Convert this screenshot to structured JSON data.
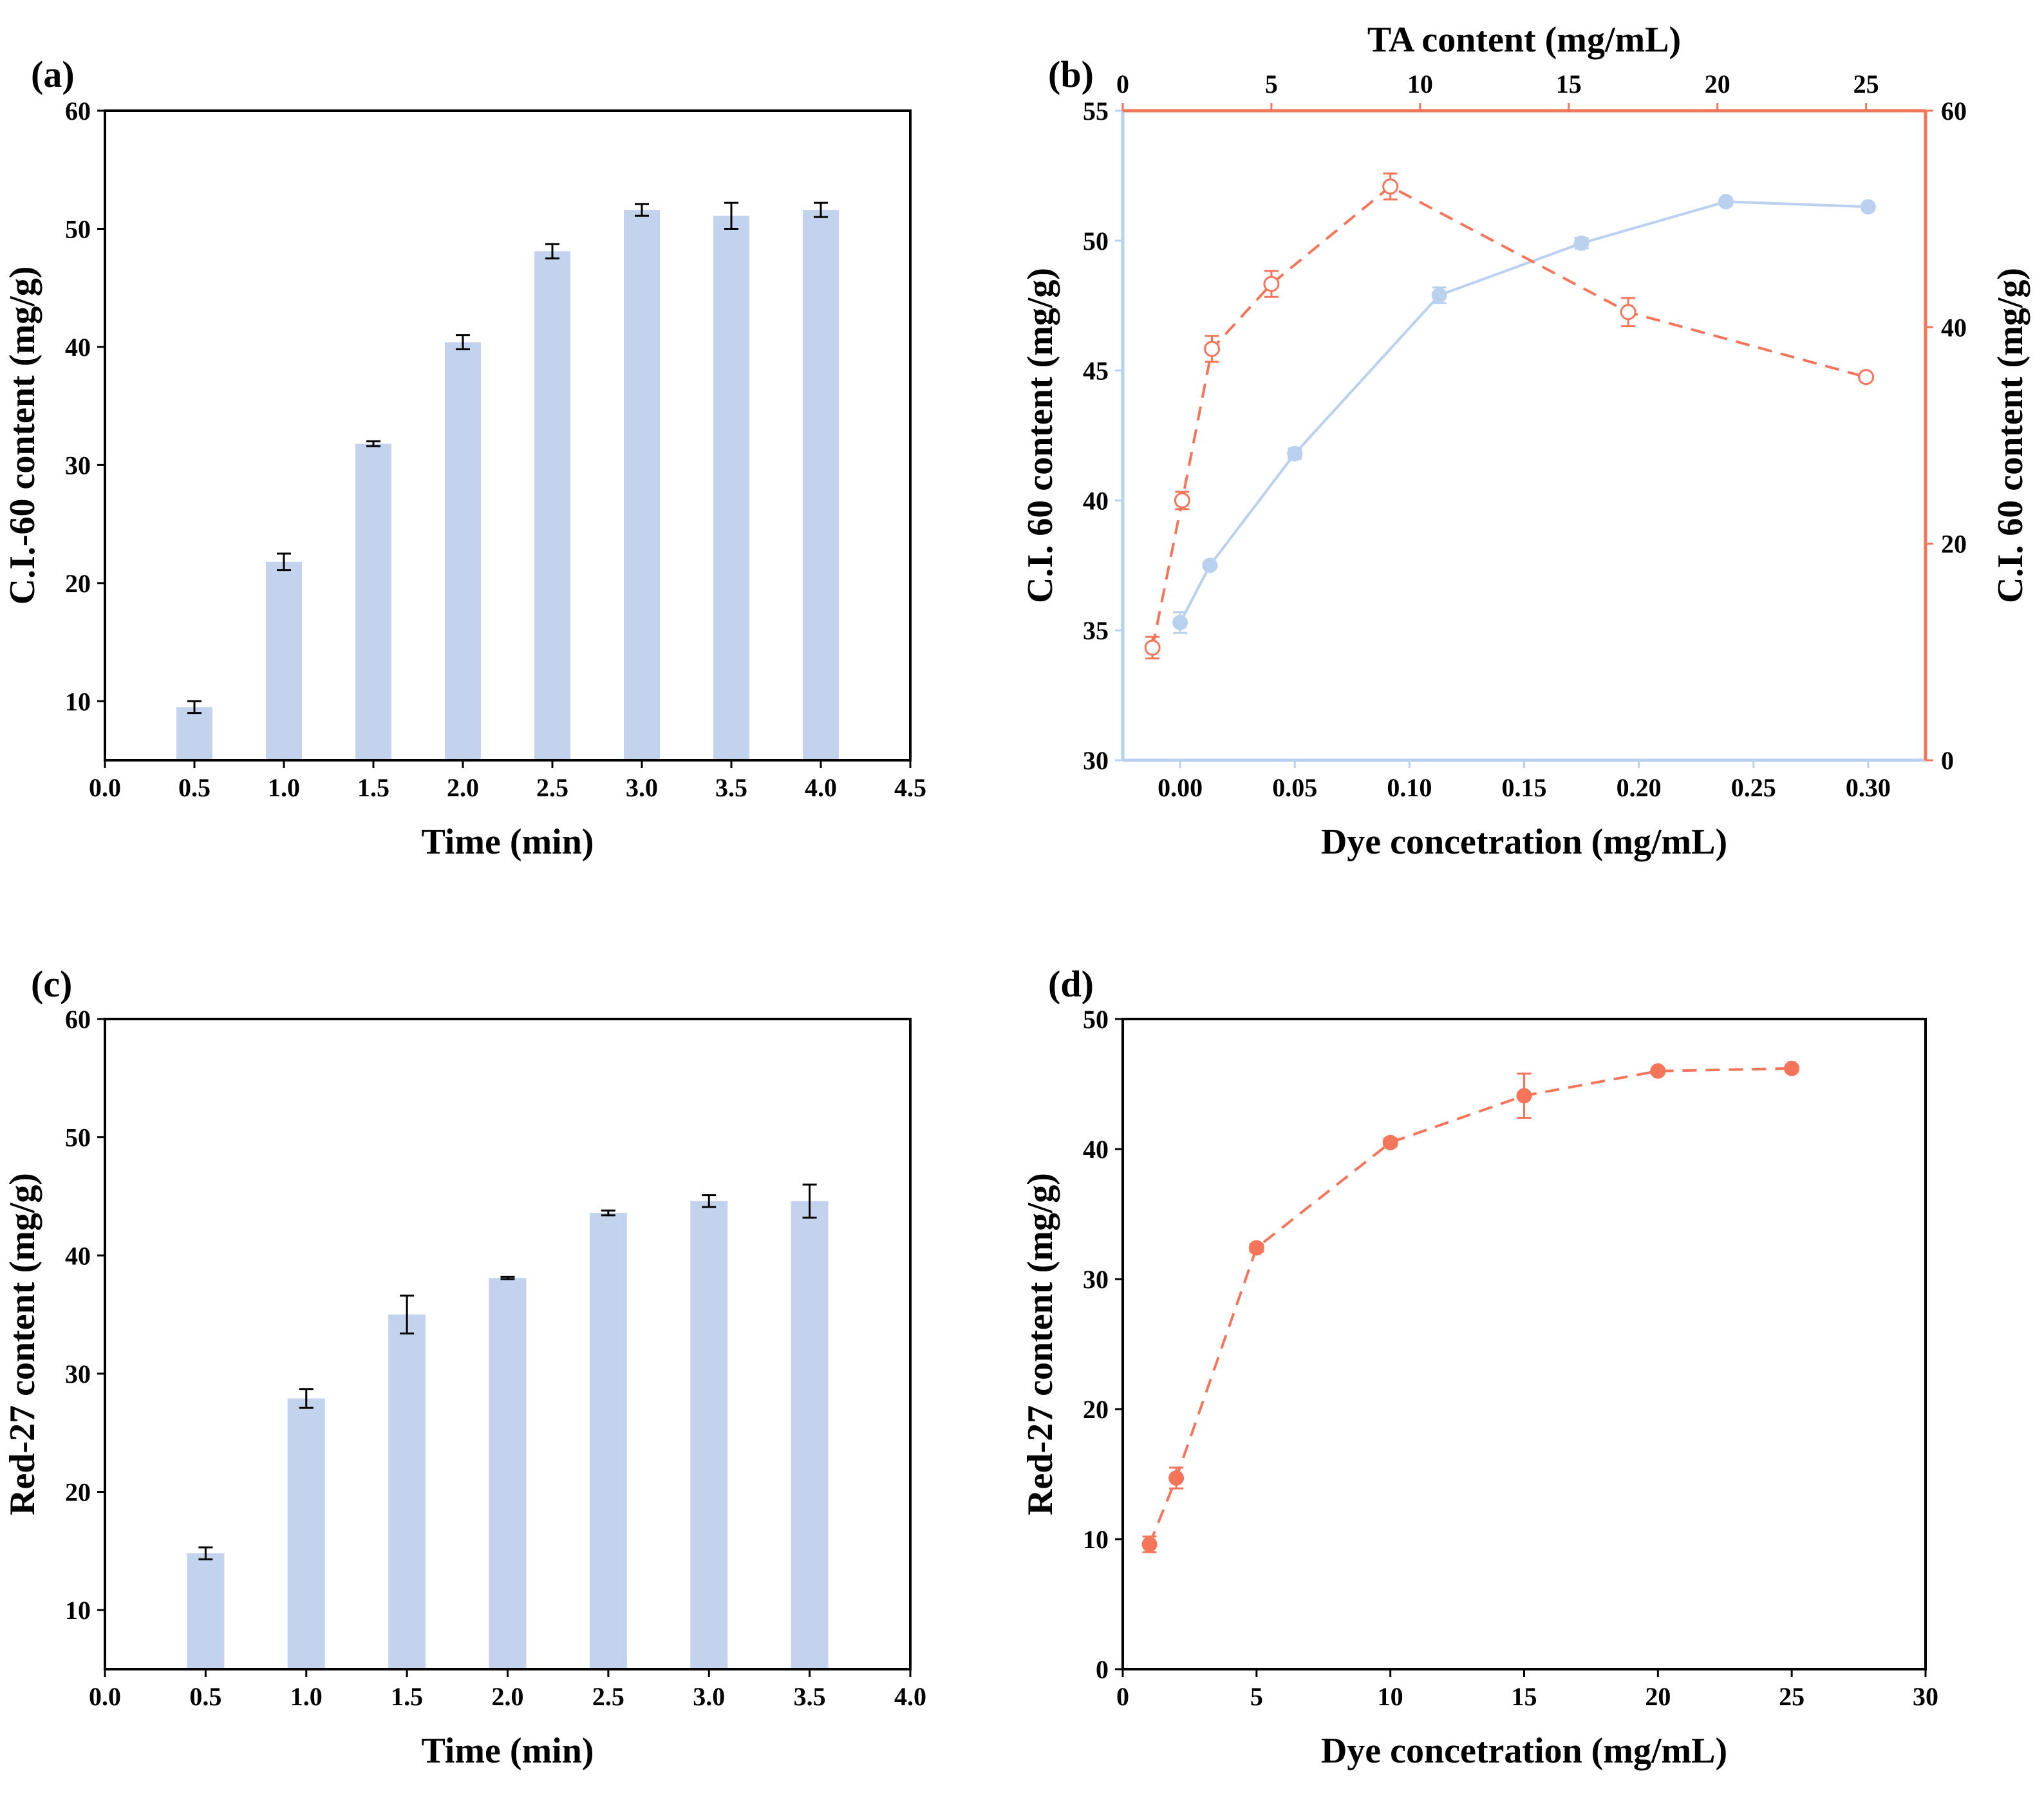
{
  "chart_data": [
    {
      "id": "a",
      "type": "bar",
      "panel_label": "(a)",
      "xlabel": "Time (min)",
      "ylabel": "C.I.-60 content (mg/g)",
      "xlim": [
        0.0,
        4.5
      ],
      "ylim": [
        5,
        60
      ],
      "xticks": [
        "0.0",
        "0.5",
        "1.0",
        "1.5",
        "2.0",
        "2.5",
        "3.0",
        "3.5",
        "4.0",
        "4.5"
      ],
      "yticks": [
        "10",
        "20",
        "30",
        "40",
        "50",
        "60"
      ],
      "bar_color": "#c3d3ee",
      "x": [
        0.5,
        1.0,
        1.5,
        2.0,
        2.5,
        3.0,
        3.5,
        4.0
      ],
      "values": [
        9.5,
        21.8,
        31.8,
        40.4,
        48.1,
        51.6,
        51.1,
        51.6
      ],
      "errors": [
        0.5,
        0.7,
        0.2,
        0.6,
        0.6,
        0.5,
        1.1,
        0.6
      ]
    },
    {
      "id": "b",
      "type": "line",
      "panel_label": "(b)",
      "xlabel": "Dye concetration (mg/mL)",
      "ylabel": "C.I. 60 content (mg/g)",
      "xlim": [
        -0.025,
        0.325
      ],
      "ylim": [
        30,
        55
      ],
      "xticks": [
        "0.00",
        "0.05",
        "0.10",
        "0.15",
        "0.20",
        "0.25",
        "0.30"
      ],
      "yticks": [
        "30",
        "35",
        "40",
        "45",
        "50",
        "55"
      ],
      "x2label": "TA content (mg/mL)",
      "x2lim": [
        0,
        27
      ],
      "x2ticks": [
        "0",
        "5",
        "10",
        "15",
        "20",
        "25"
      ],
      "y2label": "C.I. 60 content (mg/g)",
      "y2lim": [
        0,
        60
      ],
      "y2ticks": [
        "0",
        "20",
        "40",
        "60"
      ],
      "accent_color": "#f4755a",
      "series": [
        {
          "name": "Dye concetration (mg/mL)",
          "color": "#b9d0ee",
          "x": [
            0.0,
            0.013,
            0.05,
            0.113,
            0.175,
            0.238,
            0.3
          ],
          "y": [
            35.3,
            37.5,
            41.8,
            47.9,
            49.9,
            51.5,
            51.3
          ],
          "errors": [
            0.4,
            0.0,
            0.2,
            0.3,
            0.2,
            0.1,
            0.1
          ]
        },
        {
          "name": "TA content (mg/mL)",
          "color": "#f4755a",
          "x": [
            1,
            2,
            3,
            5,
            9,
            17,
            25
          ],
          "y": [
            10.4,
            24.0,
            38.0,
            44.0,
            53.0,
            41.4,
            35.4
          ],
          "errors": [
            1.0,
            0.8,
            1.2,
            1.2,
            1.2,
            1.3,
            0.0
          ]
        }
      ]
    },
    {
      "id": "c",
      "type": "bar",
      "panel_label": "(c)",
      "xlabel": "Time (min)",
      "ylabel": "Red-27 content (mg/g)",
      "xlim": [
        0.0,
        4.0
      ],
      "ylim": [
        5,
        60
      ],
      "xticks": [
        "0.0",
        "0.5",
        "1.0",
        "1.5",
        "2.0",
        "2.5",
        "3.0",
        "3.5",
        "4.0"
      ],
      "yticks": [
        "10",
        "20",
        "30",
        "40",
        "50",
        "60"
      ],
      "bar_color": "#c3d3ee",
      "x": [
        0.5,
        1.0,
        1.5,
        2.0,
        2.5,
        3.0,
        3.5
      ],
      "values": [
        14.8,
        27.9,
        35.0,
        38.1,
        43.6,
        44.6,
        44.6
      ],
      "errors": [
        0.5,
        0.8,
        1.6,
        0.1,
        0.2,
        0.5,
        1.4
      ]
    },
    {
      "id": "d",
      "type": "line",
      "panel_label": "(d)",
      "xlabel": "Dye concetration (mg/mL)",
      "ylabel": "Red-27 content (mg/g)",
      "xlim": [
        0,
        30
      ],
      "ylim": [
        0,
        50
      ],
      "xticks": [
        "0",
        "5",
        "10",
        "15",
        "20",
        "25",
        "30"
      ],
      "yticks": [
        "0",
        "10",
        "20",
        "30",
        "40",
        "50"
      ],
      "series": [
        {
          "name": "Red-27",
          "color": "#f4755a",
          "x": [
            1,
            2,
            5,
            10,
            15,
            20,
            25
          ],
          "y": [
            9.6,
            14.7,
            32.4,
            40.5,
            44.1,
            46.0,
            46.2
          ],
          "errors": [
            0.6,
            0.8,
            0.3,
            0.3,
            1.7,
            0.2,
            0.2
          ]
        }
      ]
    }
  ]
}
